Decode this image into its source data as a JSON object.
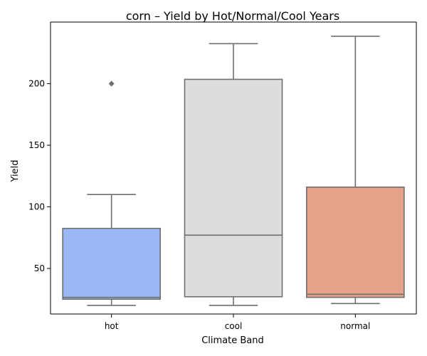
{
  "chart_data": {
    "type": "box",
    "title": "corn – Yield by Hot/Normal/Cool Years",
    "xlabel": "Climate Band",
    "ylabel": "Yield",
    "categories": [
      "hot",
      "cool",
      "normal"
    ],
    "ylim": [
      13,
      250
    ],
    "yticks": [
      50,
      100,
      150,
      200
    ],
    "grid": false,
    "boxes": [
      {
        "category": "hot",
        "color": "#9ab7f6",
        "whisker_low": 20,
        "q1": 25,
        "median": 26.5,
        "q3": 82.5,
        "whisker_high": 110,
        "outliers": [
          200
        ]
      },
      {
        "category": "cool",
        "color": "#dddddd",
        "whisker_low": 20,
        "q1": 27,
        "median": 77,
        "q3": 203.5,
        "whisker_high": 232.5,
        "outliers": []
      },
      {
        "category": "normal",
        "color": "#e6a18a",
        "whisker_low": 21.5,
        "q1": 26.5,
        "median": 29,
        "q3": 116,
        "whisker_high": 238.5,
        "outliers": []
      }
    ],
    "style": {
      "line_color": "#6f6f6f",
      "axis_color": "#000000"
    }
  }
}
